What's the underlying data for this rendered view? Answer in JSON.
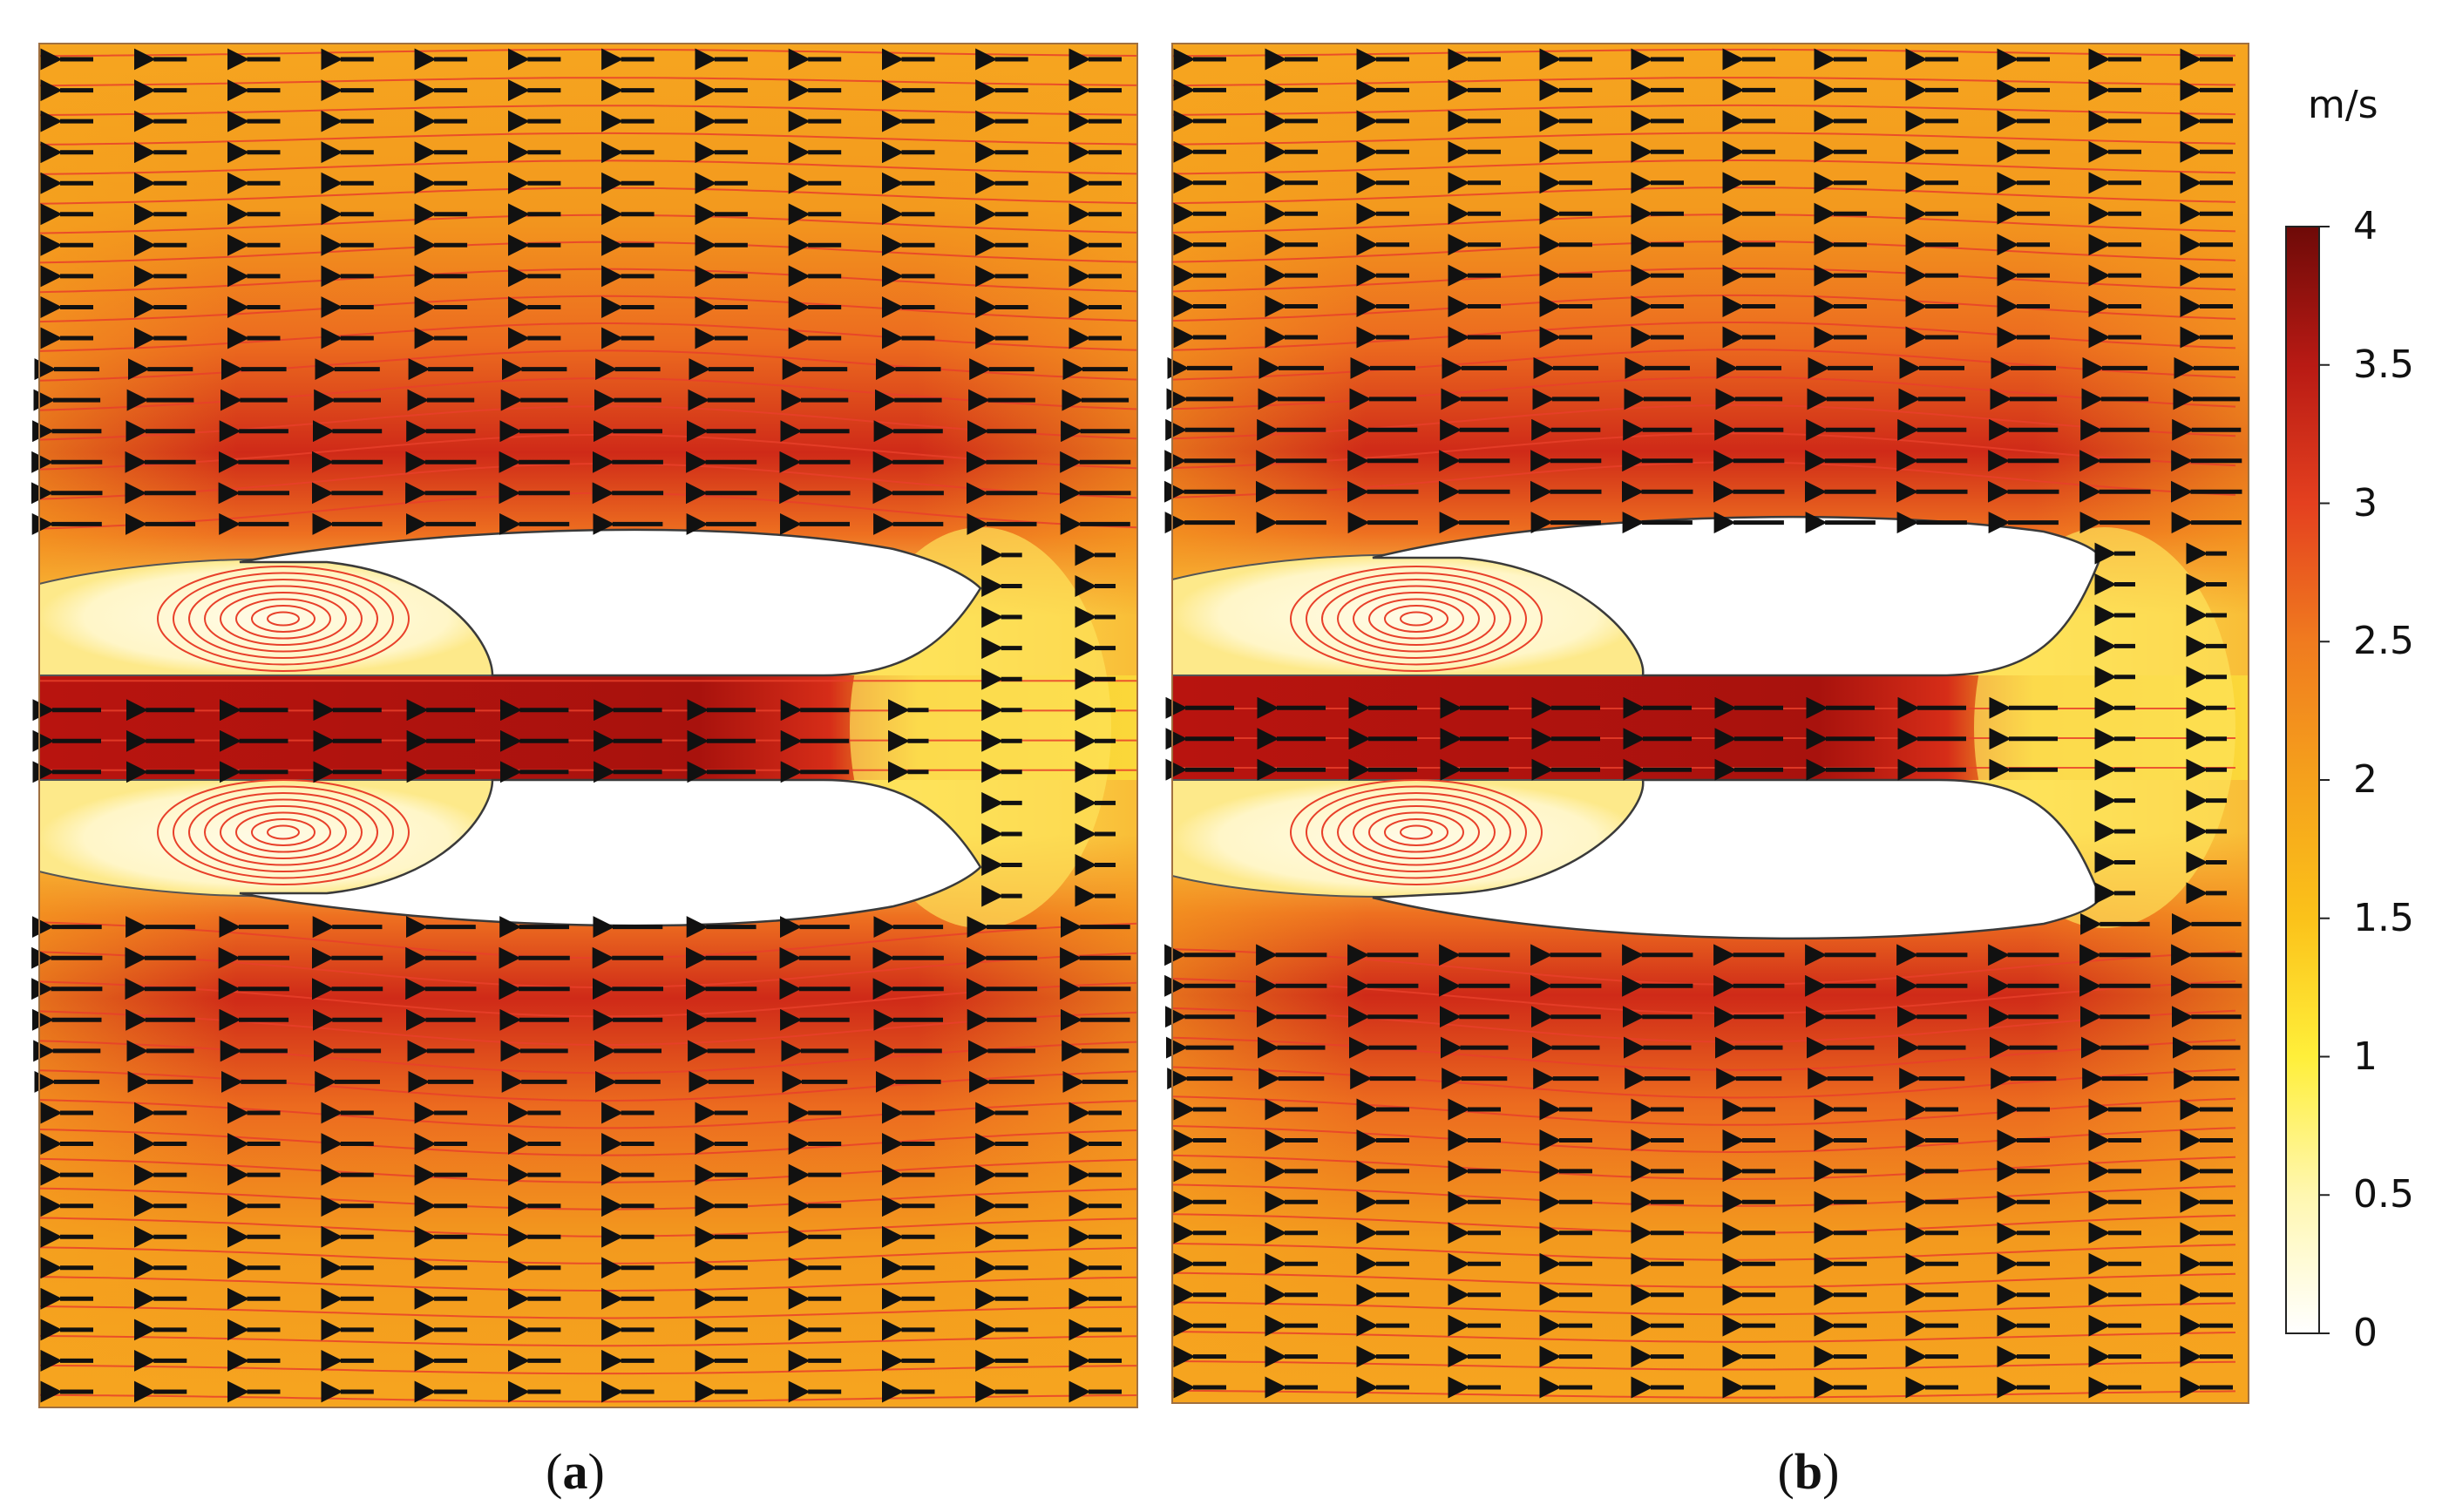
{
  "panels": [
    {
      "id": "a",
      "caption_open": "(",
      "caption_letter": "a",
      "caption_close": ")"
    },
    {
      "id": "b",
      "caption_open": "(",
      "caption_letter": "b",
      "caption_close": ")"
    }
  ],
  "colorbar": {
    "unit": "m/s",
    "min": 0,
    "max": 4,
    "ticks": [
      "0",
      "0.5",
      "1",
      "1.5",
      "2",
      "2.5",
      "3",
      "3.5",
      "4"
    ],
    "colormap": [
      "#ffffff",
      "#fff7b0",
      "#ffef3a",
      "#fbc21a",
      "#f5a11c",
      "#f07b1f",
      "#e4401f",
      "#b81a14",
      "#6e0a08"
    ]
  },
  "colors": {
    "streamline": "#e8402a",
    "arrow": "#111111",
    "body_outline": "#3a3a3a",
    "background_flow": "#f5a01f"
  }
}
